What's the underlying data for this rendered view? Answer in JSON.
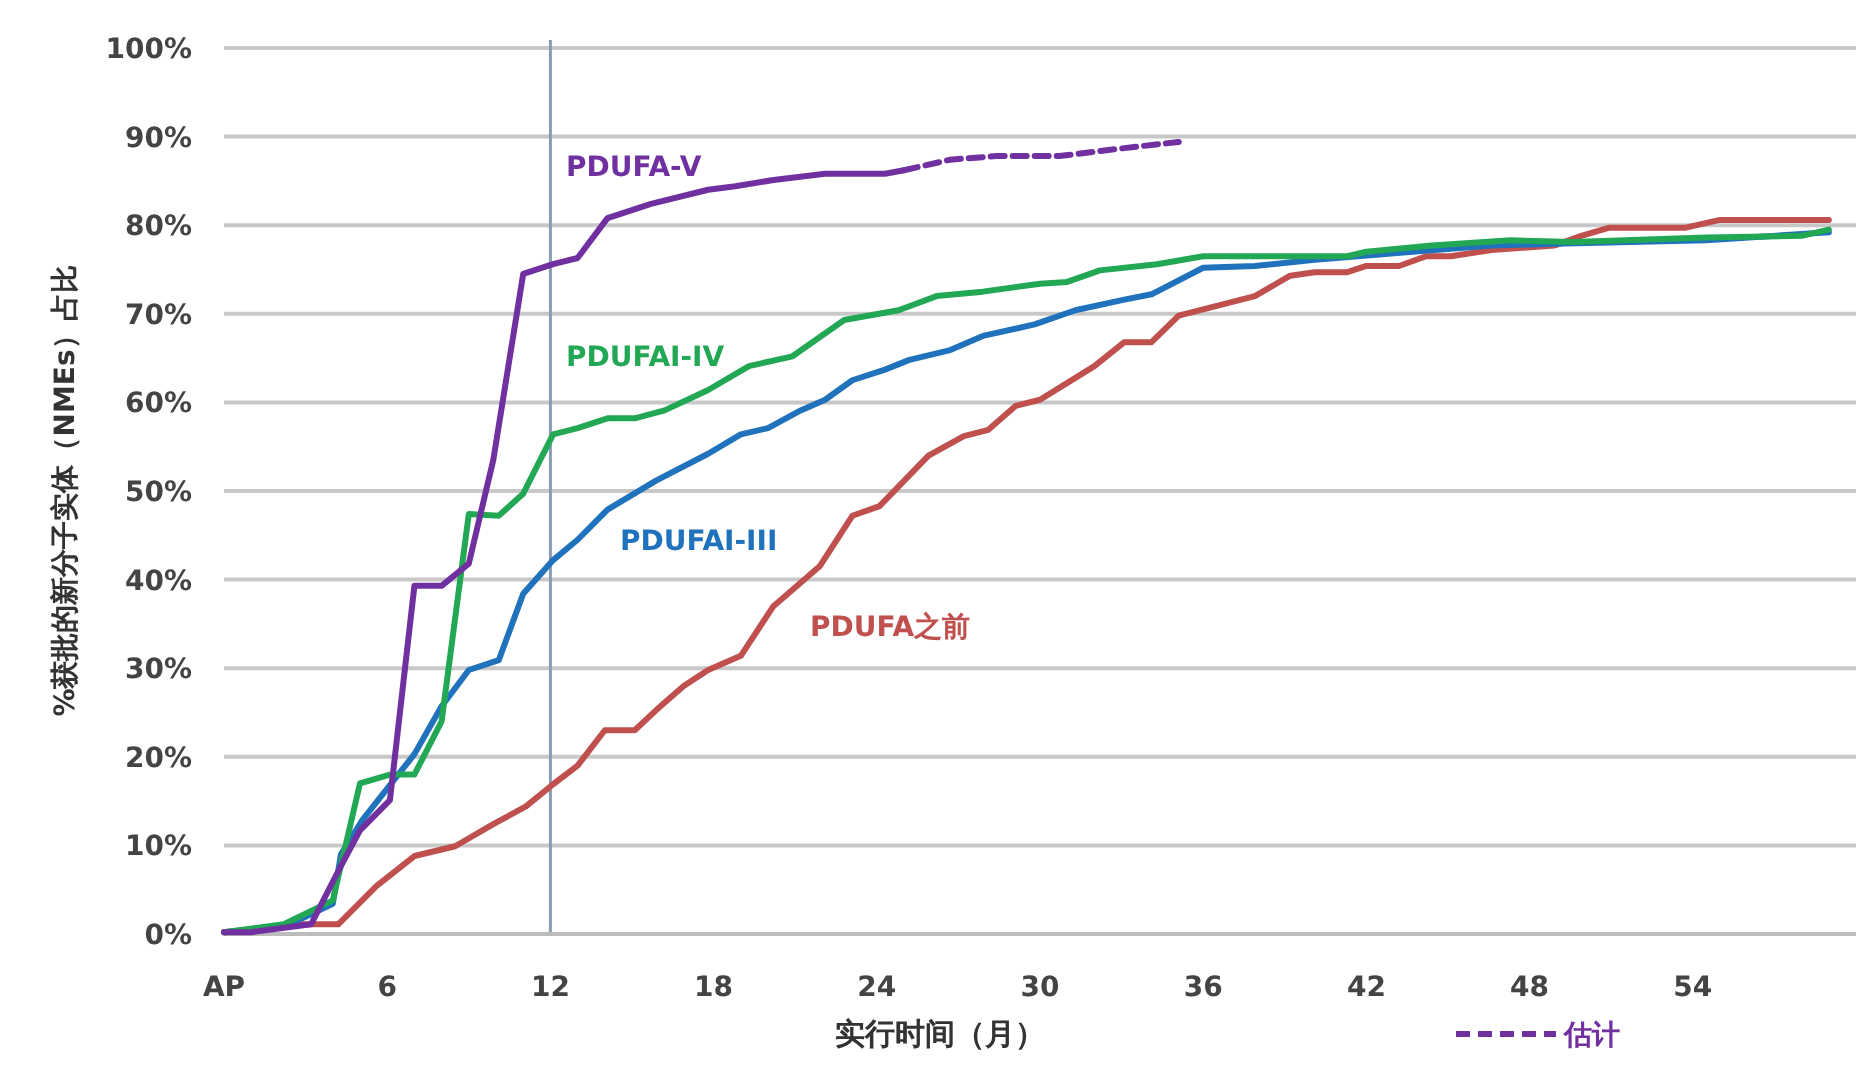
{
  "chart_data": {
    "type": "line",
    "xlabel": "实行时间（月）",
    "ylabel": "%获批的新分子实体（NMEs）占比",
    "xlim": [
      0,
      60
    ],
    "xticks": [
      {
        "value": 0,
        "label": "AP"
      },
      6,
      12,
      18,
      24,
      30,
      36,
      42,
      48,
      54
    ],
    "ylim": [
      0,
      100
    ],
    "yticks": [
      {
        "value": 0,
        "label": "0%"
      },
      {
        "value": 10,
        "label": "10%"
      },
      {
        "value": 20,
        "label": "20%"
      },
      {
        "value": 30,
        "label": "30%"
      },
      {
        "value": 40,
        "label": "40%"
      },
      {
        "value": 50,
        "label": "50%"
      },
      {
        "value": 60,
        "label": "60%"
      },
      {
        "value": 70,
        "label": "70%"
      },
      {
        "value": 80,
        "label": "80%"
      },
      {
        "value": 90,
        "label": "90%"
      },
      {
        "value": 100,
        "label": "100%"
      }
    ],
    "grid": "y",
    "legend": "bottom right",
    "ref_lines": [
      {
        "axis": "x",
        "value": 12,
        "color": "#8a9bb5"
      }
    ],
    "series": [
      {
        "name": "PDUFA之前",
        "color": "#c0504d",
        "x": [
          0,
          2.9,
          4.2,
          5.6,
          7.0,
          8.5,
          9.9,
          11.1,
          12.1,
          13.0,
          14.0,
          15.1,
          15.9,
          16.9,
          17.8,
          19.0,
          20.2,
          21.9,
          23.1,
          24.1,
          25.9,
          27.2,
          28.1,
          29.1,
          30.0,
          32.0,
          33.1,
          34.1,
          35.1,
          36.5,
          37.9,
          39.2,
          40.1,
          41.3,
          42.0,
          43.2,
          44.2,
          45.1,
          46.6,
          48.9,
          49.9,
          50.9,
          53.7,
          55.0,
          59.0
        ],
        "values": [
          0.2,
          1.1,
          1.1,
          5.4,
          8.8,
          9.9,
          12.4,
          14.4,
          16.9,
          19.0,
          23.0,
          23.0,
          25.3,
          28.0,
          29.8,
          31.4,
          37.0,
          41.5,
          47.2,
          48.3,
          54.0,
          56.2,
          56.9,
          59.6,
          60.3,
          64.1,
          66.8,
          66.8,
          69.8,
          70.9,
          72.0,
          74.3,
          74.7,
          74.7,
          75.4,
          75.4,
          76.5,
          76.5,
          77.2,
          77.7,
          78.8,
          79.7,
          79.7,
          80.6,
          80.6
        ]
      },
      {
        "name": "PDUFAI-III",
        "color": "#1f72bb",
        "x": [
          0,
          2.2,
          2.9,
          4.0,
          4.3,
          5.1,
          7.0,
          8.0,
          9.0,
          10.1,
          11.0,
          12.1,
          13.0,
          14.1,
          15.9,
          17.8,
          19.0,
          20.0,
          21.2,
          22.1,
          23.1,
          24.3,
          25.2,
          26.7,
          27.9,
          29.8,
          31.3,
          33.1,
          34.1,
          36.0,
          37.9,
          40.1,
          43.7,
          46.6,
          48.9,
          54.5,
          59.0
        ],
        "values": [
          0.2,
          0.9,
          1.8,
          3.4,
          9.0,
          12.9,
          20.3,
          25.7,
          29.8,
          30.9,
          38.4,
          42.2,
          44.5,
          47.9,
          51.2,
          54.2,
          56.4,
          57.1,
          59.1,
          60.3,
          62.5,
          63.7,
          64.8,
          65.9,
          67.5,
          68.8,
          70.4,
          71.6,
          72.2,
          75.2,
          75.4,
          76.1,
          77.0,
          77.7,
          77.9,
          78.3,
          79.2
        ]
      },
      {
        "name": "PDUFAI-IV",
        "color": "#22a854",
        "x": [
          0,
          2.2,
          4.0,
          5.0,
          6.1,
          7.0,
          8.0,
          9.0,
          10.1,
          11.0,
          12.1,
          13.0,
          14.1,
          15.1,
          16.2,
          17.8,
          19.3,
          20.9,
          22.8,
          24.8,
          26.2,
          27.9,
          30.0,
          31.0,
          32.2,
          34.3,
          36.0,
          37.9,
          41.3,
          42.0,
          44.4,
          47.3,
          49.6,
          54.5,
          58.0,
          59.0
        ],
        "values": [
          0.2,
          1.1,
          3.8,
          17.0,
          18.0,
          18.0,
          24.0,
          47.4,
          47.2,
          49.7,
          56.4,
          57.1,
          58.2,
          58.2,
          59.1,
          61.4,
          64.1,
          65.2,
          69.3,
          70.4,
          72.0,
          72.5,
          73.4,
          73.6,
          74.9,
          75.6,
          76.5,
          76.5,
          76.5,
          77.0,
          77.7,
          78.3,
          78.1,
          78.6,
          78.8,
          79.5
        ]
      },
      {
        "name": "PDUFA-V",
        "color": "#7030a0",
        "x": [
          0,
          1.0,
          3.2,
          4.3,
          5.0,
          6.1,
          7.0,
          8.0,
          9.0,
          9.9,
          11.0,
          12.1,
          13.0,
          14.1,
          15.7,
          17.8,
          18.8,
          20.2,
          22.1,
          24.3,
          25.0
        ],
        "values": [
          0.2,
          0.2,
          1.1,
          7.7,
          11.7,
          15.1,
          39.3,
          39.3,
          41.8,
          53.5,
          74.5,
          75.6,
          76.3,
          80.8,
          82.4,
          84.0,
          84.4,
          85.1,
          85.8,
          85.8,
          86.2
        ]
      },
      {
        "name": "估计",
        "color": "#7030a0",
        "line_style": "dashed",
        "x": [
          25.0,
          26.7,
          28.4,
          30.7,
          33.1,
          35.1
        ],
        "values": [
          86.2,
          87.4,
          87.8,
          87.8,
          88.7,
          89.4
        ]
      }
    ]
  }
}
